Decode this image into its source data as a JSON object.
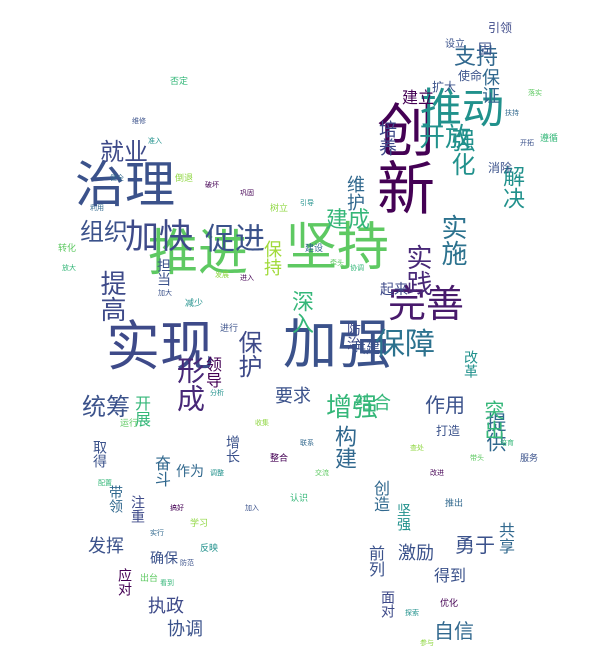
{
  "palette": {
    "dark_purple": "#440154",
    "navy": "#3b528b",
    "slate": "#31688e",
    "teal": "#21918c",
    "green": "#35b779",
    "lime": "#90d743",
    "yellow": "#d8e219"
  },
  "words": [
    {
      "t": "推进",
      "c": "#5ec962"
    },
    {
      "t": "坚持",
      "c": "#5ec962"
    },
    {
      "t": "加强",
      "c": "#3b528b"
    },
    {
      "t": "实现",
      "c": "#3e4a89"
    },
    {
      "t": "创新",
      "c": "#440154"
    },
    {
      "t": "治理",
      "c": "#3b528b"
    },
    {
      "t": "推动",
      "c": "#21918c"
    },
    {
      "t": "完善",
      "c": "#481a6c"
    },
    {
      "t": "保障",
      "c": "#2c728e"
    },
    {
      "t": "加快",
      "c": "#3e4a89"
    },
    {
      "t": "促进",
      "c": "#3b528b"
    },
    {
      "t": "形成",
      "c": "#482878"
    },
    {
      "t": "保护",
      "c": "#3e4a89"
    },
    {
      "t": "实施",
      "c": "#2c728e"
    },
    {
      "t": "实践",
      "c": "#482878"
    },
    {
      "t": "开放",
      "c": "#21918c"
    },
    {
      "t": "强化",
      "c": "#21918c"
    },
    {
      "t": "提高",
      "c": "#3e4a89"
    },
    {
      "t": "组织",
      "c": "#3b528b"
    },
    {
      "t": "就业",
      "c": "#3e4a89"
    },
    {
      "t": "统筹",
      "c": "#3b528b"
    },
    {
      "t": "增强",
      "c": "#35b779"
    },
    {
      "t": "构建",
      "c": "#31688e"
    },
    {
      "t": "建成",
      "c": "#35b779"
    },
    {
      "t": "支持",
      "c": "#31688e"
    },
    {
      "t": "深入",
      "c": "#35b779"
    },
    {
      "t": "维护",
      "c": "#31688e"
    },
    {
      "t": "解决",
      "c": "#21918c"
    },
    {
      "t": "要求",
      "c": "#3b528b"
    },
    {
      "t": "勇于",
      "c": "#3b528b"
    },
    {
      "t": "作用",
      "c": "#3b528b"
    },
    {
      "t": "提供",
      "c": "#31688e"
    },
    {
      "t": "自信",
      "c": "#31688e"
    },
    {
      "t": "发挥",
      "c": "#3b528b"
    },
    {
      "t": "协调",
      "c": "#3b528b"
    },
    {
      "t": "保持",
      "c": "#a0da39"
    },
    {
      "t": "培养",
      "c": "#3e4a89"
    },
    {
      "t": "建立",
      "c": "#440154"
    },
    {
      "t": "保证",
      "c": "#31688e"
    },
    {
      "t": "结合",
      "c": "#35b779"
    },
    {
      "t": "取得",
      "c": "#3b528b"
    },
    {
      "t": "注重",
      "c": "#3e4a89"
    },
    {
      "t": "创造",
      "c": "#31688e"
    },
    {
      "t": "坚强",
      "c": "#21918c"
    },
    {
      "t": "激励",
      "c": "#3b528b"
    },
    {
      "t": "前列",
      "c": "#3b528b"
    },
    {
      "t": "面对",
      "c": "#3e4a89"
    },
    {
      "t": "执政",
      "c": "#3e4a89"
    },
    {
      "t": "应对",
      "c": "#440154"
    },
    {
      "t": "引领",
      "c": "#3e4a89"
    },
    {
      "t": "使命",
      "c": "#3b528b"
    },
    {
      "t": "扩大",
      "c": "#3b528b"
    },
    {
      "t": "消除",
      "c": "#3b528b"
    },
    {
      "t": "改革",
      "c": "#21918c"
    },
    {
      "t": "防治",
      "c": "#3e4a89"
    },
    {
      "t": "共建",
      "c": "#3b528b"
    },
    {
      "t": "突出",
      "c": "#35b779"
    },
    {
      "t": "得到",
      "c": "#3b528b"
    },
    {
      "t": "共享",
      "c": "#31688e"
    },
    {
      "t": "领导",
      "c": "#440154"
    },
    {
      "t": "起来",
      "c": "#3e4a89"
    },
    {
      "t": "担当",
      "c": "#3b528b"
    },
    {
      "t": "开展",
      "c": "#35b779"
    },
    {
      "t": "奋斗",
      "c": "#31688e"
    },
    {
      "t": "带领",
      "c": "#31688e"
    },
    {
      "t": "作为",
      "c": "#31688e"
    },
    {
      "t": "设立",
      "c": "#3b528b"
    },
    {
      "t": "固",
      "c": "#3b528b"
    },
    {
      "t": "打造",
      "c": "#3b528b"
    },
    {
      "t": "确保",
      "c": "#3b528b"
    },
    {
      "t": "增长",
      "c": "#3b528b"
    }
  ],
  "small_words": [
    "否定",
    "维修",
    "准入",
    "倒退",
    "破坏",
    "利用",
    "转化",
    "放大",
    "加大",
    "减少",
    "发展",
    "进入",
    "建设",
    "牵头",
    "协调",
    "进行",
    "分析",
    "收集",
    "整合",
    "联系",
    "交流",
    "认识",
    "加入",
    "调整",
    "学习",
    "搞好",
    "实行",
    "出台",
    "看到",
    "防范",
    "反映",
    "查处",
    "改进",
    "推出",
    "带头",
    "培育",
    "服务",
    "探索",
    "参与",
    "优化",
    "扶持",
    "落实",
    "遵循",
    "开拓",
    "引导",
    "树立",
    "巩固",
    "健全",
    "运行",
    "配置"
  ]
}
